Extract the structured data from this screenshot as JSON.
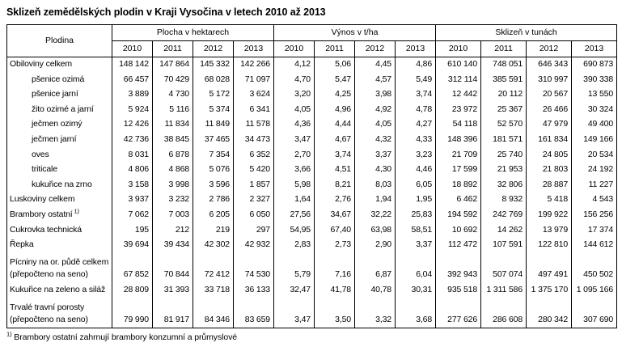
{
  "title": "Sklizeň zemědělských plodin v Kraji Vysočina v letech 2010 až 2013",
  "table": {
    "crop_header": "Plodina",
    "groups": [
      {
        "label": "Plocha v hektarech"
      },
      {
        "label": "Výnos v t/ha"
      },
      {
        "label": "Sklizeň v tunách"
      }
    ],
    "years": [
      "2010",
      "2011",
      "2012",
      "2013"
    ],
    "rows": [
      {
        "lines": [
          "Obiloviny celkem"
        ],
        "indent": false,
        "area_ha": [
          "148 142",
          "147 864",
          "145 332",
          "142 266"
        ],
        "yield_tpha": [
          "4,12",
          "5,06",
          "4,45",
          "4,86"
        ],
        "harvest_t": [
          "610 140",
          "748 051",
          "646 343",
          "690 873"
        ]
      },
      {
        "lines": [
          "pšenice ozimá"
        ],
        "indent": true,
        "area_ha": [
          "66 457",
          "70 429",
          "68 028",
          "71 097"
        ],
        "yield_tpha": [
          "4,70",
          "5,47",
          "4,57",
          "5,49"
        ],
        "harvest_t": [
          "312 114",
          "385 591",
          "310 997",
          "390 338"
        ]
      },
      {
        "lines": [
          "pšenice jarní"
        ],
        "indent": true,
        "area_ha": [
          "3 889",
          "4 730",
          "5 172",
          "3 624"
        ],
        "yield_tpha": [
          "3,20",
          "4,25",
          "3,98",
          "3,74"
        ],
        "harvest_t": [
          "12 442",
          "20 112",
          "20 567",
          "13 550"
        ]
      },
      {
        "lines": [
          "žito ozimé a jarní"
        ],
        "indent": true,
        "area_ha": [
          "5 924",
          "5 116",
          "5 374",
          "6 341"
        ],
        "yield_tpha": [
          "4,05",
          "4,96",
          "4,92",
          "4,78"
        ],
        "harvest_t": [
          "23 972",
          "25 367",
          "26 466",
          "30 324"
        ]
      },
      {
        "lines": [
          "ječmen ozimý"
        ],
        "indent": true,
        "area_ha": [
          "12 426",
          "11 834",
          "11 849",
          "11 578"
        ],
        "yield_tpha": [
          "4,36",
          "4,44",
          "4,05",
          "4,27"
        ],
        "harvest_t": [
          "54 118",
          "52 570",
          "47 979",
          "49 400"
        ]
      },
      {
        "lines": [
          "ječmen jarní"
        ],
        "indent": true,
        "area_ha": [
          "42 736",
          "38 845",
          "37 465",
          "34 473"
        ],
        "yield_tpha": [
          "3,47",
          "4,67",
          "4,32",
          "4,33"
        ],
        "harvest_t": [
          "148 396",
          "181 571",
          "161 834",
          "149 166"
        ]
      },
      {
        "lines": [
          "oves"
        ],
        "indent": true,
        "area_ha": [
          "8 031",
          "6 878",
          "7 354",
          "6 352"
        ],
        "yield_tpha": [
          "2,70",
          "3,74",
          "3,37",
          "3,23"
        ],
        "harvest_t": [
          "21 709",
          "25 740",
          "24 805",
          "20 534"
        ]
      },
      {
        "lines": [
          "triticale"
        ],
        "indent": true,
        "area_ha": [
          "4 806",
          "4 868",
          "5 076",
          "5 420"
        ],
        "yield_tpha": [
          "3,66",
          "4,51",
          "4,30",
          "4,46"
        ],
        "harvest_t": [
          "17 599",
          "21 953",
          "21 803",
          "24 192"
        ]
      },
      {
        "lines": [
          "kukuřice na zrno"
        ],
        "indent": true,
        "area_ha": [
          "3 158",
          "3 998",
          "3 596",
          "1 857"
        ],
        "yield_tpha": [
          "5,98",
          "8,21",
          "8,03",
          "6,05"
        ],
        "harvest_t": [
          "18 892",
          "32 806",
          "28 887",
          "11 227"
        ]
      },
      {
        "lines": [
          "Luskoviny celkem"
        ],
        "indent": false,
        "area_ha": [
          "3 937",
          "3 232",
          "2 786",
          "2 327"
        ],
        "yield_tpha": [
          "1,64",
          "2,76",
          "1,94",
          "1,95"
        ],
        "harvest_t": [
          "6 462",
          "8 932",
          "5 418",
          "4 543"
        ]
      },
      {
        "lines": [
          "Brambory ostatní"
        ],
        "sup": "1)",
        "indent": false,
        "area_ha": [
          "7 062",
          "7 003",
          "6 205",
          "6 050"
        ],
        "yield_tpha": [
          "27,56",
          "34,67",
          "32,22",
          "25,83"
        ],
        "harvest_t": [
          "194 592",
          "242 769",
          "199 922",
          "156 256"
        ]
      },
      {
        "lines": [
          "Cukrovka technická"
        ],
        "indent": false,
        "area_ha": [
          "195",
          "212",
          "219",
          "297"
        ],
        "yield_tpha": [
          "54,95",
          "67,40",
          "63,98",
          "58,51"
        ],
        "harvest_t": [
          "10 692",
          "14 262",
          "13 979",
          "17 374"
        ]
      },
      {
        "lines": [
          "Řepka"
        ],
        "indent": false,
        "area_ha": [
          "39 694",
          "39 434",
          "42 302",
          "42 932"
        ],
        "yield_tpha": [
          "2,83",
          "2,73",
          "2,90",
          "3,37"
        ],
        "harvest_t": [
          "112 472",
          "107 591",
          "122 810",
          "144 612"
        ]
      },
      {
        "lines": [
          "Pícniny na or. půdě celkem",
          "(přepočteno na seno)"
        ],
        "indent": false,
        "area_ha": [
          "67 852",
          "70 844",
          "72 412",
          "74 530"
        ],
        "yield_tpha": [
          "5,79",
          "7,16",
          "6,87",
          "6,04"
        ],
        "harvest_t": [
          "392 943",
          "507 074",
          "497 491",
          "450 502"
        ]
      },
      {
        "lines": [
          "Kukuřice na zeleno a siláž"
        ],
        "indent": false,
        "area_ha": [
          "28 809",
          "31 393",
          "33 718",
          "36 133"
        ],
        "yield_tpha": [
          "32,47",
          "41,78",
          "40,78",
          "30,31"
        ],
        "harvest_t": [
          "935 518",
          "1 311 586",
          "1 375 170",
          "1 095 166"
        ]
      },
      {
        "lines": [
          "Trvalé travní porosty",
          "(přepočteno na seno)"
        ],
        "indent": false,
        "area_ha": [
          "79 990",
          "81 917",
          "84 346",
          "83 659"
        ],
        "yield_tpha": [
          "3,47",
          "3,50",
          "3,32",
          "3,68"
        ],
        "harvest_t": [
          "277 626",
          "286 608",
          "280 342",
          "307 690"
        ]
      }
    ]
  },
  "footnote": {
    "marker": "1)",
    "text": " Brambory ostatní zahrnují brambory konzumní a průmyslové"
  }
}
